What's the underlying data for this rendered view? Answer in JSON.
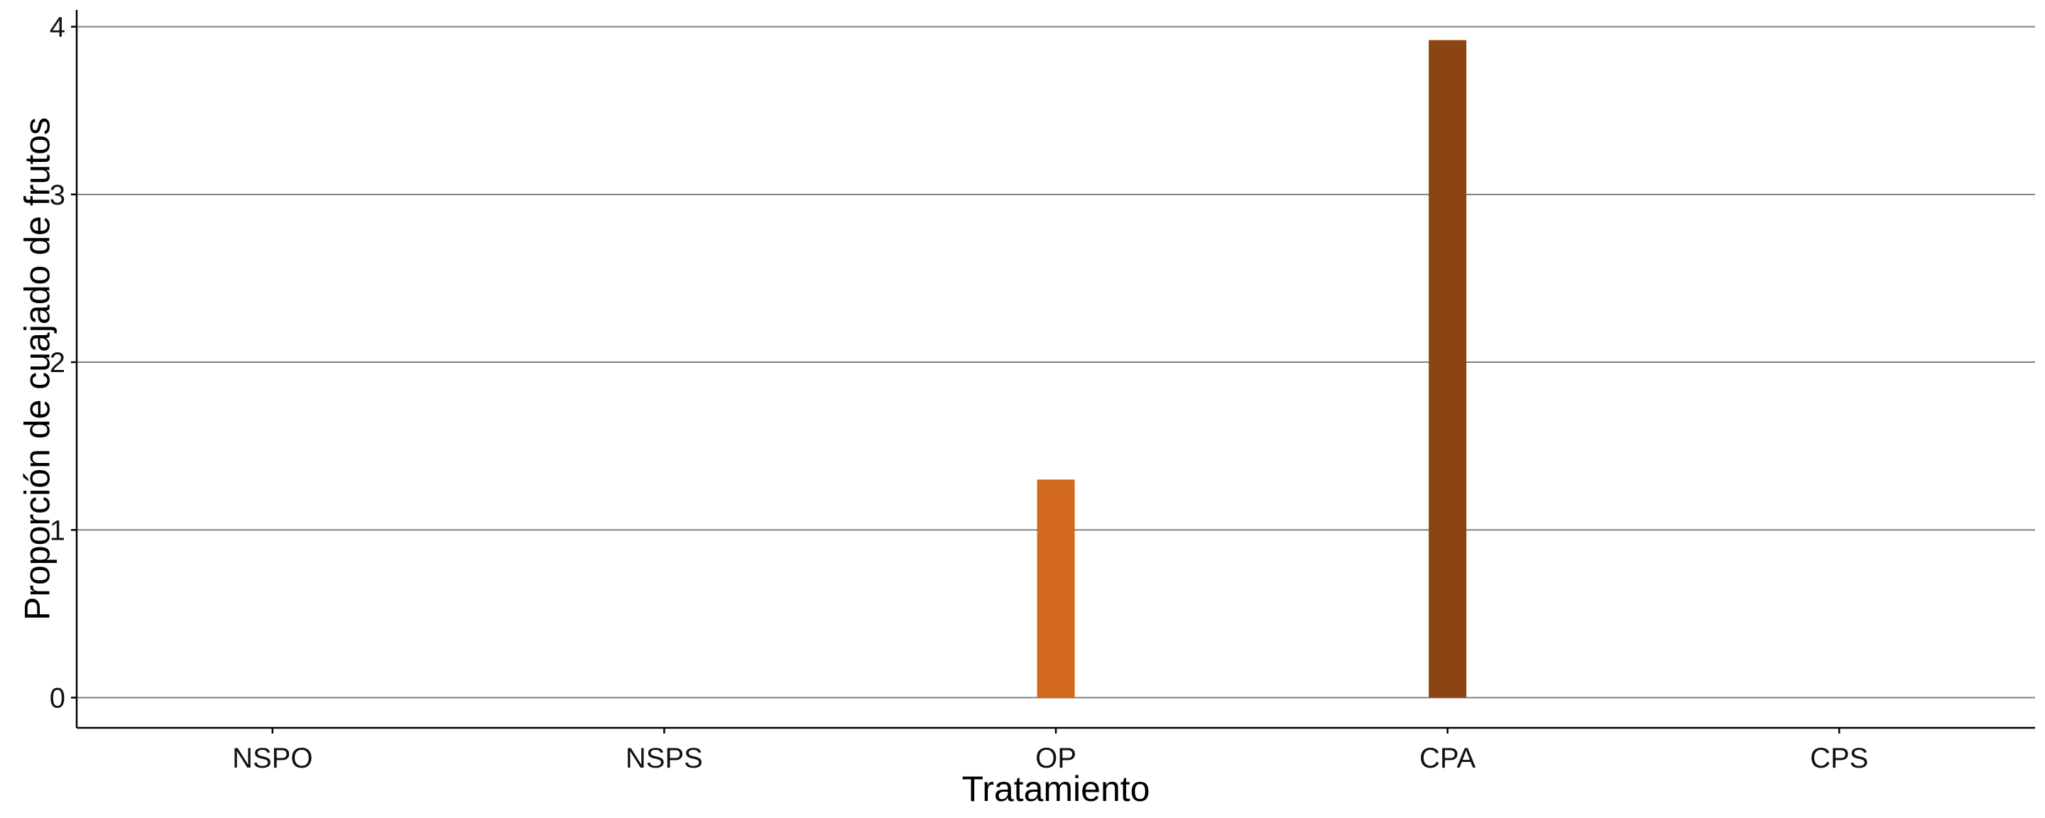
{
  "chart_data": {
    "type": "bar",
    "title": "",
    "xlabel": "Tratamiento",
    "ylabel": "Proporción de cuajado de frutos",
    "categories": [
      "NSPO",
      "NSPS",
      "OP",
      "CPA",
      "CPS"
    ],
    "values": [
      0,
      0,
      1.3,
      3.92,
      0
    ],
    "bar_colors": [
      "#D2691E",
      "#D2691E",
      "#D2691E",
      "#8B4513",
      "#D2691E"
    ],
    "ylim": [
      -0.18,
      4.1
    ],
    "yticks": [
      0,
      1,
      2,
      3,
      4
    ],
    "grid": "horizontal",
    "grid_color": "#808080",
    "legend": "none"
  }
}
